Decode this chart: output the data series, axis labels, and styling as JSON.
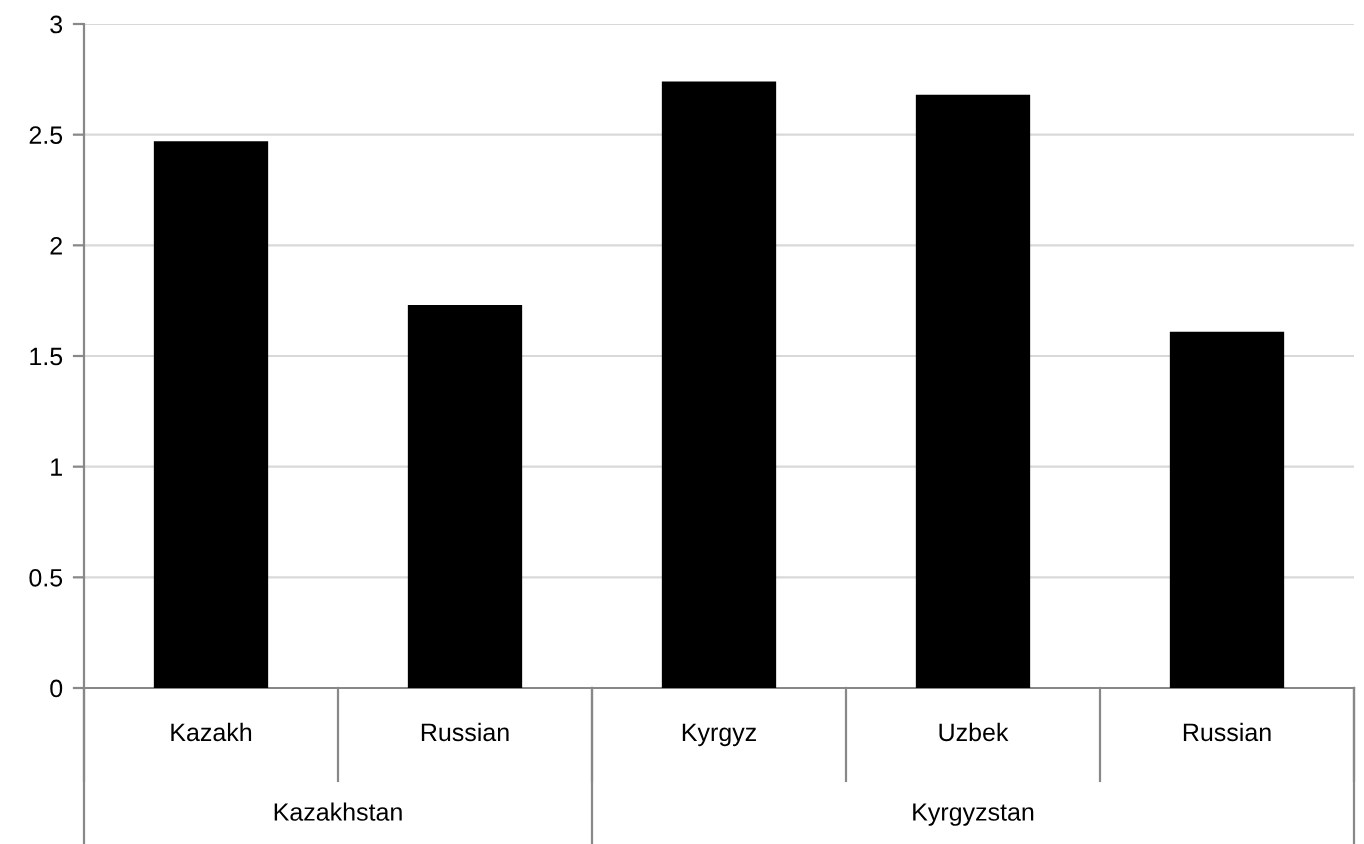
{
  "chart_data": {
    "type": "bar",
    "categories": [
      "Kazakh",
      "Russian",
      "Kyrgyz",
      "Uzbek",
      "Russian"
    ],
    "values": [
      2.47,
      1.73,
      2.74,
      2.68,
      1.61
    ],
    "color": "#000000",
    "ylim": [
      0,
      3
    ],
    "yticks": [
      0,
      0.5,
      1,
      1.5,
      2,
      2.5,
      3
    ],
    "grid": "y",
    "annotations": [
      "Kazakhstan",
      "Kyrgyzstan"
    ]
  }
}
